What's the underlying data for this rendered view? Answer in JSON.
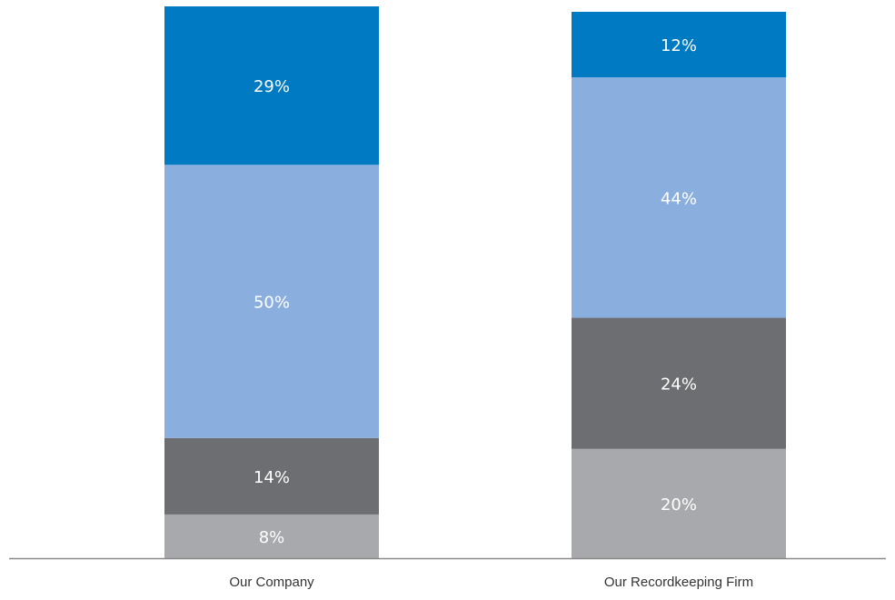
{
  "chart_data": {
    "type": "stacked_bar",
    "categories": [
      "Our Company",
      "Our Recordkeeping Firm"
    ],
    "series": [
      {
        "color": "#a7a9ac",
        "values": [
          8,
          20
        ],
        "value_labels": [
          "8%",
          "20%"
        ]
      },
      {
        "color": "#6d6e71",
        "values": [
          14,
          24
        ],
        "value_labels": [
          "14%",
          "24%"
        ]
      },
      {
        "color": "#8aaede",
        "values": [
          50,
          44
        ],
        "value_labels": [
          "50%",
          "44%"
        ]
      },
      {
        "color": "#007ac3",
        "values": [
          29,
          12
        ],
        "value_labels": [
          "29%",
          "12%"
        ]
      }
    ],
    "ylim": [
      0,
      100
    ]
  }
}
